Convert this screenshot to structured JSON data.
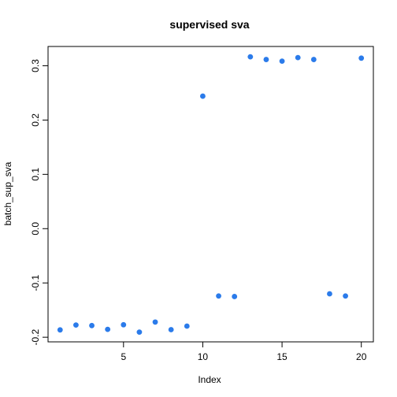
{
  "chart_data": {
    "type": "scatter",
    "title": "supervised sva",
    "xlabel": "Index",
    "ylabel": "batch_sup_sva",
    "xlim": [
      0.24,
      20.76
    ],
    "ylim": [
      -0.2085,
      0.3355
    ],
    "x_ticks": [
      5,
      10,
      15,
      20
    ],
    "y_ticks": [
      -0.2,
      -0.1,
      0.0,
      0.1,
      0.2,
      0.3
    ],
    "y_tick_labels": [
      "-0.2",
      "-0.1",
      "0.0",
      "0.1",
      "0.2",
      "0.3"
    ],
    "point_color": "#2b7bea",
    "grid": false,
    "x": [
      1,
      2,
      3,
      4,
      5,
      6,
      7,
      8,
      9,
      10,
      11,
      12,
      13,
      14,
      15,
      16,
      17,
      18,
      19,
      20
    ],
    "y": [
      -0.1865,
      -0.1775,
      -0.1785,
      -0.1855,
      -0.177,
      -0.1905,
      -0.172,
      -0.186,
      -0.1795,
      0.244,
      -0.124,
      -0.125,
      0.3165,
      0.3115,
      0.3085,
      0.315,
      0.3115,
      -0.12,
      -0.124,
      0.314
    ]
  }
}
